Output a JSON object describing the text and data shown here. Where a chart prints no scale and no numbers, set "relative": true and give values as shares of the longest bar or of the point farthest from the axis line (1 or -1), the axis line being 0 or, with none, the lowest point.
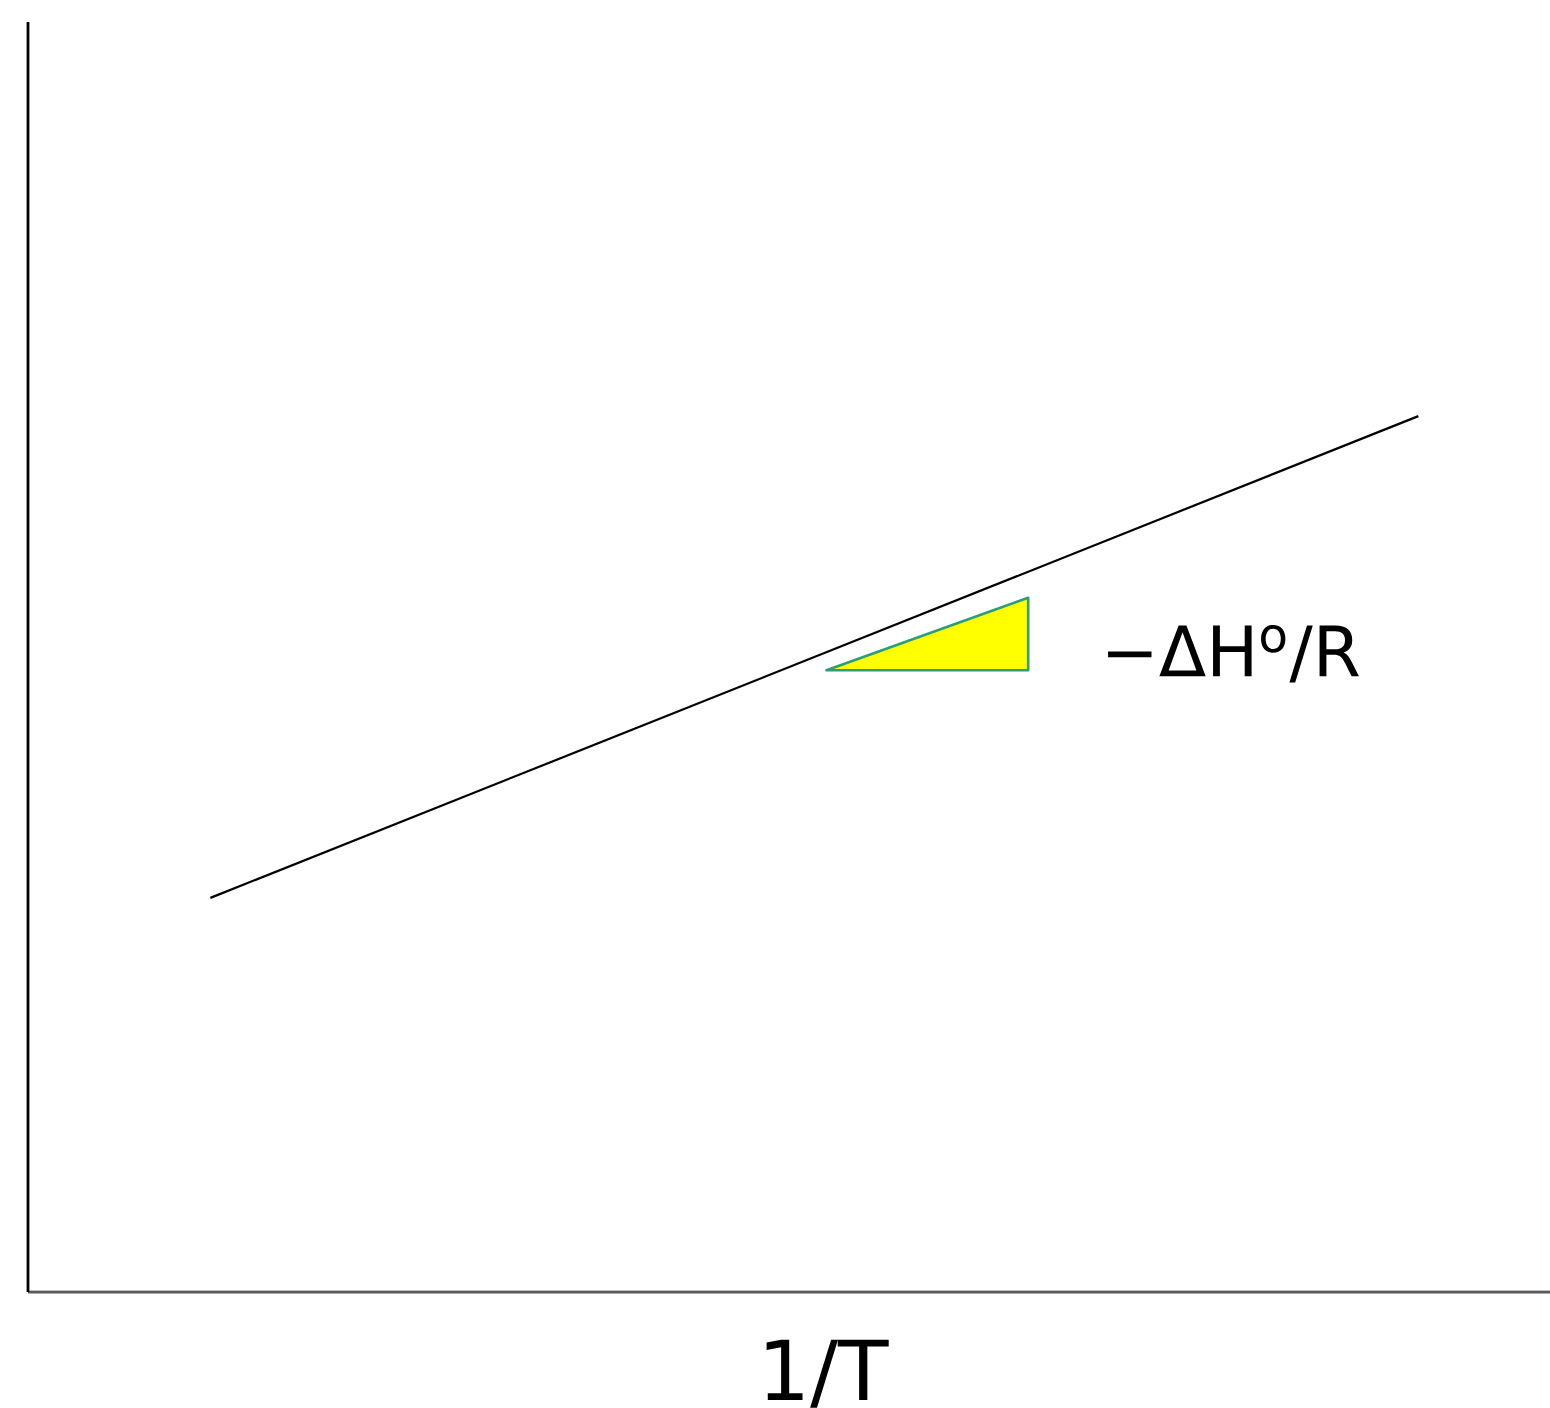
{
  "chart_data": {
    "type": "line",
    "relative": true,
    "xlabel": "1/T",
    "categories": [
      null,
      null
    ],
    "series": [
      {
        "color": "#000000",
        "values": [
          0.45,
          1
        ]
      }
    ],
    "marker": "none",
    "annotations": [
      "−ΔH$^{o}$/R"
    ]
  }
}
